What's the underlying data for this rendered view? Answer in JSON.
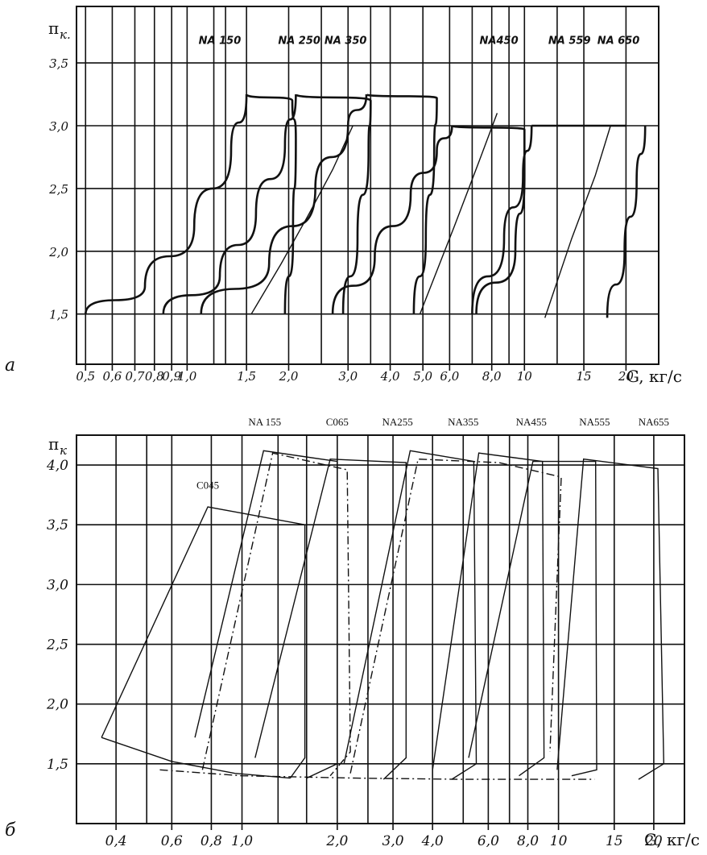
{
  "chart_data": [
    {
      "panel": "a",
      "type": "line",
      "ylabel": "π_к",
      "xlabel": "G, кг/с",
      "x_scale": "log",
      "xlim": [
        0.47,
        25
      ],
      "ylim": [
        1.1,
        3.95
      ],
      "x_ticks": [
        {
          "v": 0.5,
          "t": "0,5"
        },
        {
          "v": 0.6,
          "t": "0,6"
        },
        {
          "v": 0.7,
          "t": "0,7"
        },
        {
          "v": 0.8,
          "t": "0,8"
        },
        {
          "v": 0.9,
          "t": "0,9"
        },
        {
          "v": 1.0,
          "t": "1,0"
        },
        {
          "v": 1.5,
          "t": "1,5"
        },
        {
          "v": 2.0,
          "t": "2,0"
        },
        {
          "v": 3.0,
          "t": "3,0"
        },
        {
          "v": 4.0,
          "t": "4,0"
        },
        {
          "v": 5.0,
          "t": "5,0"
        },
        {
          "v": 6.0,
          "t": "6,0"
        },
        {
          "v": 8.0,
          "t": "8,0"
        },
        {
          "v": 10,
          "t": "10"
        },
        {
          "v": 15,
          "t": "15"
        },
        {
          "v": 20,
          "t": "20"
        }
      ],
      "x_minor": [
        1.2,
        1.3,
        2.5,
        3.5,
        7.0,
        9.0,
        12.5
      ],
      "y_ticks": [
        {
          "v": 1.5,
          "t": "1,5"
        },
        {
          "v": 2.0,
          "t": "2,0"
        },
        {
          "v": 2.5,
          "t": "2,5"
        },
        {
          "v": 3.0,
          "t": "3,0"
        },
        {
          "v": 3.5,
          "t": "3,5"
        }
      ],
      "grid": true,
      "series": [
        {
          "name": "NA 150",
          "style": "curve",
          "x": [
            0.5,
            0.75,
            1.05,
            1.35,
            1.5
          ],
          "y": [
            1.5,
            1.72,
            2.2,
            2.8,
            3.25
          ]
        },
        {
          "name": "NA 150",
          "style": "curve",
          "x": [
            1.5,
            2.05,
            2.1,
            2.06,
            1.95
          ],
          "y": [
            3.25,
            3.2,
            2.9,
            2.1,
            1.5
          ]
        },
        {
          "name": "NA 250",
          "style": "curve",
          "x": [
            0.85,
            1.25,
            1.6,
            1.95,
            2.1
          ],
          "y": [
            1.5,
            1.8,
            2.3,
            2.85,
            3.25
          ]
        },
        {
          "name": "NA 250",
          "style": "curve",
          "x": [
            2.1,
            3.5,
            3.45,
            3.2,
            2.9
          ],
          "y": [
            3.25,
            3.2,
            2.8,
            2.1,
            1.5
          ]
        },
        {
          "name": "NA 350",
          "style": "curve",
          "x": [
            1.1,
            1.75,
            2.4,
            3.0,
            3.4
          ],
          "y": [
            1.5,
            1.9,
            2.5,
            3.0,
            3.25
          ]
        },
        {
          "name": "NA 350",
          "style": "curve",
          "x": [
            3.4,
            5.5,
            5.4,
            5.1,
            4.7
          ],
          "y": [
            3.25,
            3.22,
            2.8,
            2.1,
            1.5
          ]
        },
        {
          "name": "NA 450",
          "style": "curve",
          "x": [
            2.7,
            3.6,
            4.6,
            5.5,
            6.1
          ],
          "y": [
            1.5,
            1.95,
            2.45,
            2.8,
            3.0
          ]
        },
        {
          "name": "NA 450",
          "style": "curve",
          "x": [
            6.1,
            10.0,
            10.0,
            9.4,
            7.2
          ],
          "y": [
            3.0,
            2.97,
            2.6,
            2.0,
            1.5
          ]
        },
        {
          "name": "NA 559",
          "style": "curve",
          "x": [
            7.0,
            8.7,
            9.9,
            10.5
          ],
          "y": [
            1.5,
            2.1,
            2.6,
            3.0
          ]
        },
        {
          "name": "NA 559",
          "style": "curve",
          "x": [
            10.5,
            20.0
          ],
          "y": [
            3.0,
            3.0
          ]
        },
        {
          "name": "NA 650",
          "style": "curve",
          "x": [
            17.6,
            19.8,
            21.5,
            22.8
          ],
          "y": [
            1.47,
            2.0,
            2.55,
            3.0
          ]
        },
        {
          "name": "",
          "style": "thin",
          "x": [
            1.55,
            1.9,
            2.3,
            2.7,
            3.1
          ],
          "y": [
            1.5,
            1.9,
            2.3,
            2.65,
            3.0
          ]
        },
        {
          "name": "",
          "style": "thin",
          "x": [
            4.9,
            6.2,
            7.3,
            8.3
          ],
          "y": [
            1.5,
            2.2,
            2.7,
            3.1
          ]
        },
        {
          "name": "",
          "style": "thin",
          "x": [
            11.5,
            13.8,
            16.2,
            18.0
          ],
          "y": [
            1.47,
            2.1,
            2.6,
            3.0
          ]
        }
      ],
      "annotations": [
        {
          "text": "NA 150",
          "x": 1.25,
          "y": 3.65
        },
        {
          "text": "NA 250",
          "x": 2.15,
          "y": 3.65
        },
        {
          "text": "NA 350",
          "x": 2.95,
          "y": 3.65
        },
        {
          "text": "NA450",
          "x": 8.4,
          "y": 3.65
        },
        {
          "text": "NA 559",
          "x": 13.6,
          "y": 3.65
        },
        {
          "text": "NA 650",
          "x": 19.0,
          "y": 3.65
        }
      ]
    },
    {
      "panel": "б",
      "type": "line",
      "ylabel": "π_к",
      "xlabel": "G, кг/с",
      "x_scale": "log",
      "xlim": [
        0.3,
        25
      ],
      "ylim": [
        1.0,
        4.25
      ],
      "x_ticks": [
        {
          "v": 0.4,
          "t": "0,4"
        },
        {
          "v": 0.6,
          "t": "0,6"
        },
        {
          "v": 0.8,
          "t": "0,8"
        },
        {
          "v": 1.0,
          "t": "1,0"
        },
        {
          "v": 2.0,
          "t": "2,0"
        },
        {
          "v": 3.0,
          "t": "3,0"
        },
        {
          "v": 4.0,
          "t": "4,0"
        },
        {
          "v": 6.0,
          "t": "6,0"
        },
        {
          "v": 8.0,
          "t": "8,0"
        },
        {
          "v": 10,
          "t": "10"
        },
        {
          "v": 15,
          "t": "15"
        },
        {
          "v": 20,
          "t": "20"
        }
      ],
      "x_minor": [
        0.5,
        1.3,
        1.6,
        2.5,
        5.0,
        7.0
      ],
      "y_ticks": [
        {
          "v": 1.5,
          "t": "1,5"
        },
        {
          "v": 2.0,
          "t": "2,0"
        },
        {
          "v": 2.5,
          "t": "2,5"
        },
        {
          "v": 3.0,
          "t": "3,0"
        },
        {
          "v": 3.5,
          "t": "3,5"
        },
        {
          "v": 4.0,
          "t": "4,0"
        }
      ],
      "grid": true,
      "series": [
        {
          "name": "C045",
          "style": "thin",
          "x": [
            0.36,
            0.78,
            1.58,
            1.58,
            1.42
          ],
          "y": [
            1.72,
            3.65,
            3.5,
            1.55,
            1.38
          ]
        },
        {
          "name": "C045",
          "style": "thin",
          "x": [
            0.36,
            0.6,
            0.95,
            1.42
          ],
          "y": [
            1.72,
            1.52,
            1.42,
            1.38
          ]
        },
        {
          "name": "NA 155",
          "style": "thin",
          "x": [
            0.71,
            1.17,
            2.0,
            2.0,
            1.6
          ],
          "y": [
            1.72,
            4.12,
            4.03,
            1.5,
            1.38
          ]
        },
        {
          "name": "C065",
          "style": "dash",
          "x": [
            0.75,
            1.25,
            2.15,
            2.2,
            1.9
          ],
          "y": [
            1.45,
            4.1,
            3.96,
            1.6,
            1.4
          ]
        },
        {
          "name": "NA 255",
          "style": "thin",
          "x": [
            1.1,
            1.9,
            3.3,
            3.3,
            2.8
          ],
          "y": [
            1.55,
            4.05,
            4.02,
            1.55,
            1.37
          ]
        },
        {
          "name": "NA 355",
          "style": "thin",
          "x": [
            2.1,
            3.4,
            5.4,
            5.5,
            4.6
          ],
          "y": [
            1.5,
            4.12,
            4.03,
            1.5,
            1.37
          ]
        },
        {
          "name": "NA 455",
          "style": "thin",
          "x": [
            4.0,
            5.6,
            8.9,
            9.0,
            7.5
          ],
          "y": [
            1.45,
            4.1,
            4.03,
            1.55,
            1.4
          ]
        },
        {
          "name": "NA 455",
          "style": "dash",
          "x": [
            2.2,
            3.6,
            6.5,
            10.2,
            9.4
          ],
          "y": [
            1.42,
            4.05,
            4.02,
            3.9,
            1.6
          ]
        },
        {
          "name": "NA 555",
          "style": "thin",
          "x": [
            5.2,
            8.3,
            13.1,
            13.2,
            11.0
          ],
          "y": [
            1.55,
            4.03,
            4.03,
            1.45,
            1.4
          ]
        },
        {
          "name": "NA 655",
          "style": "thin",
          "x": [
            9.9,
            12.0,
            20.6,
            21.5,
            17.9
          ],
          "y": [
            1.45,
            4.05,
            3.97,
            1.5,
            1.37
          ]
        },
        {
          "name": "",
          "style": "dash",
          "x": [
            0.55,
            1.0,
            2.3,
            5.0,
            8.3,
            13.0
          ],
          "y": [
            1.45,
            1.4,
            1.38,
            1.37,
            1.37,
            1.37
          ]
        }
      ],
      "annotations": [
        {
          "text": "C045",
          "x": 0.78,
          "y": 3.8
        },
        {
          "text": "NA 155",
          "x": 1.18,
          "y": 4.5
        },
        {
          "text": "C065",
          "x": 2.0,
          "y": 4.5
        },
        {
          "text": "NA255",
          "x": 3.1,
          "y": 4.5
        },
        {
          "text": "NA355",
          "x": 5.0,
          "y": 4.5
        },
        {
          "text": "NA455",
          "x": 8.2,
          "y": 4.5
        },
        {
          "text": "NA555",
          "x": 13.0,
          "y": 4.5
        },
        {
          "text": "NA655",
          "x": 20.0,
          "y": 4.5
        }
      ]
    }
  ],
  "panel_labels": [
    "а",
    "б"
  ],
  "y_label": "π",
  "y_subscript_a": "к.",
  "y_subscript_b": "к",
  "x_label": "G, кг/с"
}
